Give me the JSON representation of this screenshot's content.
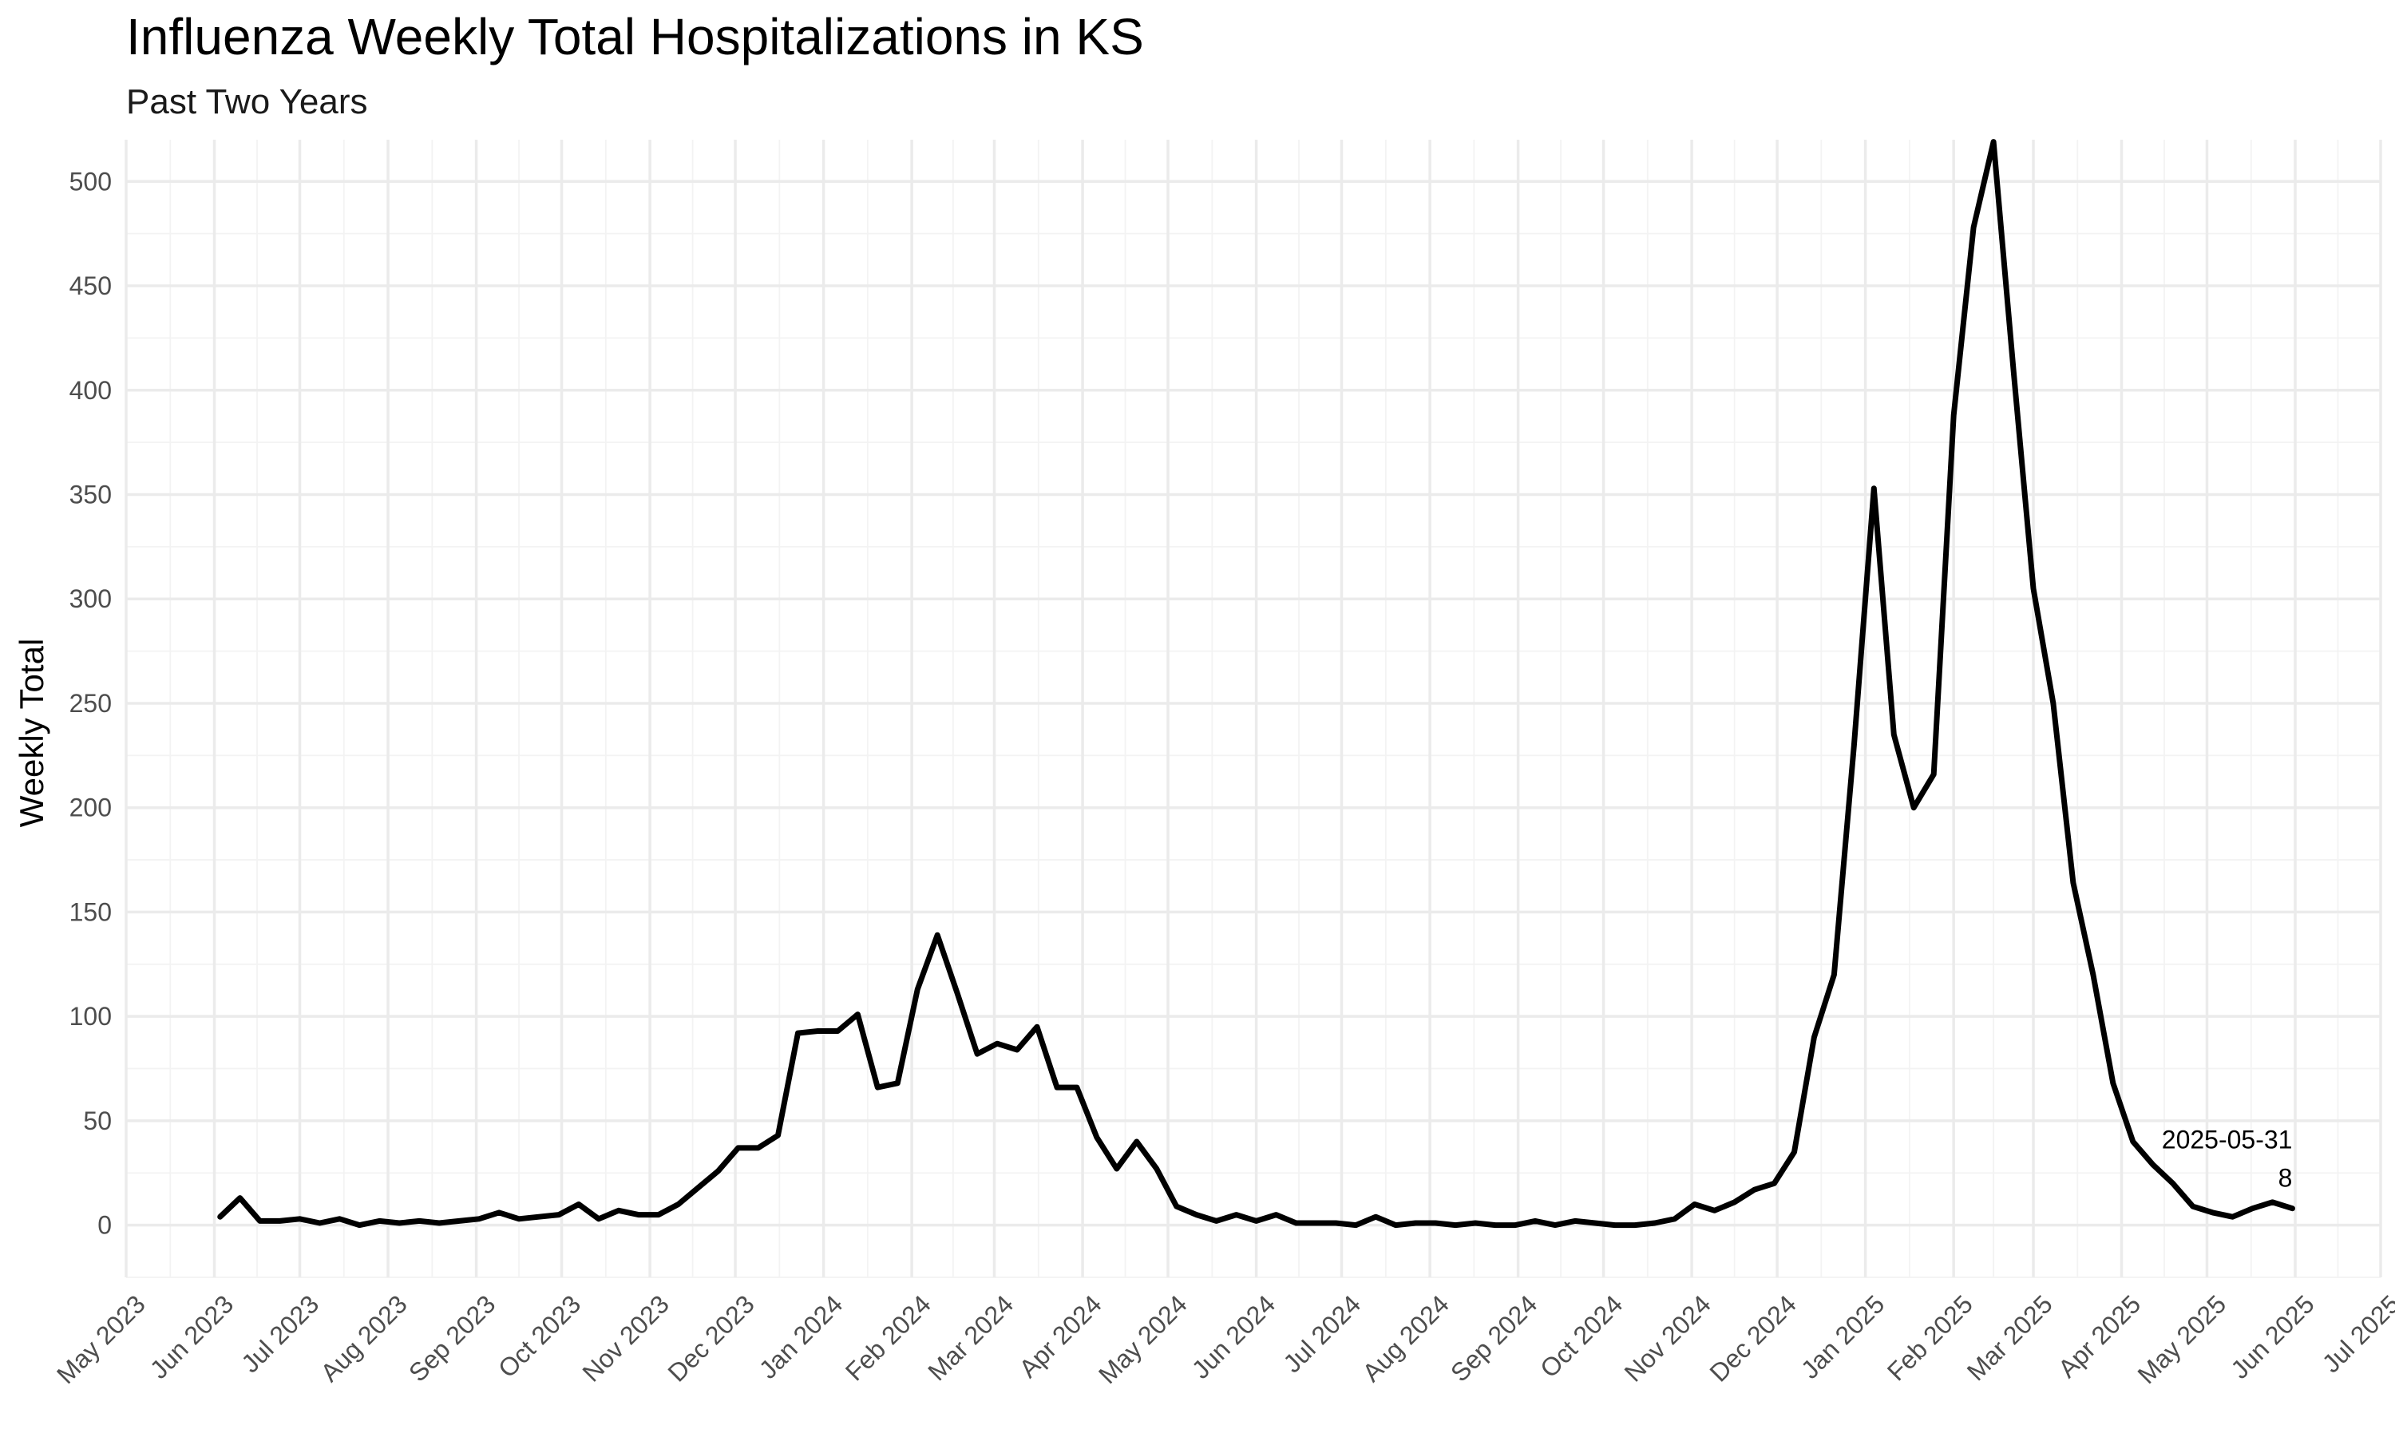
{
  "chart_data": {
    "type": "line",
    "title": "Influenza Weekly Total Hospitalizations in KS",
    "subtitle": "Past Two Years",
    "xlabel": "",
    "ylabel": "Weekly Total",
    "grid": true,
    "legend": "none",
    "xlim": [
      "2023-05-01",
      "2025-07-01"
    ],
    "ylim": [
      -25,
      520
    ],
    "y_ticks": [
      0,
      50,
      100,
      150,
      200,
      250,
      300,
      350,
      400,
      450,
      500
    ],
    "x_ticks": [
      {
        "date": "2023-05-01",
        "label": "May 2023"
      },
      {
        "date": "2023-06-01",
        "label": "Jun 2023"
      },
      {
        "date": "2023-07-01",
        "label": "Jul 2023"
      },
      {
        "date": "2023-08-01",
        "label": "Aug 2023"
      },
      {
        "date": "2023-09-01",
        "label": "Sep 2023"
      },
      {
        "date": "2023-10-01",
        "label": "Oct 2023"
      },
      {
        "date": "2023-11-01",
        "label": "Nov 2023"
      },
      {
        "date": "2023-12-01",
        "label": "Dec 2023"
      },
      {
        "date": "2024-01-01",
        "label": "Jan 2024"
      },
      {
        "date": "2024-02-01",
        "label": "Feb 2024"
      },
      {
        "date": "2024-03-01",
        "label": "Mar 2024"
      },
      {
        "date": "2024-04-01",
        "label": "Apr 2024"
      },
      {
        "date": "2024-05-01",
        "label": "May 2024"
      },
      {
        "date": "2024-06-01",
        "label": "Jun 2024"
      },
      {
        "date": "2024-07-01",
        "label": "Jul 2024"
      },
      {
        "date": "2024-08-01",
        "label": "Aug 2024"
      },
      {
        "date": "2024-09-01",
        "label": "Sep 2024"
      },
      {
        "date": "2024-10-01",
        "label": "Oct 2024"
      },
      {
        "date": "2024-11-01",
        "label": "Nov 2024"
      },
      {
        "date": "2024-12-01",
        "label": "Dec 2024"
      },
      {
        "date": "2025-01-01",
        "label": "Jan 2025"
      },
      {
        "date": "2025-02-01",
        "label": "Feb 2025"
      },
      {
        "date": "2025-03-01",
        "label": "Mar 2025"
      },
      {
        "date": "2025-04-01",
        "label": "Apr 2025"
      },
      {
        "date": "2025-05-01",
        "label": "May 2025"
      },
      {
        "date": "2025-06-01",
        "label": "Jun 2025"
      },
      {
        "date": "2025-07-01",
        "label": "Jul 2025"
      }
    ],
    "series": [
      {
        "color": "#000000",
        "points": [
          [
            "2023-06-03",
            4
          ],
          [
            "2023-06-10",
            13
          ],
          [
            "2023-06-17",
            2
          ],
          [
            "2023-06-24",
            2
          ],
          [
            "2023-07-01",
            3
          ],
          [
            "2023-07-08",
            1
          ],
          [
            "2023-07-15",
            3
          ],
          [
            "2023-07-22",
            0
          ],
          [
            "2023-07-29",
            2
          ],
          [
            "2023-08-05",
            1
          ],
          [
            "2023-08-12",
            2
          ],
          [
            "2023-08-19",
            1
          ],
          [
            "2023-08-26",
            2
          ],
          [
            "2023-09-02",
            3
          ],
          [
            "2023-09-09",
            6
          ],
          [
            "2023-09-16",
            3
          ],
          [
            "2023-09-23",
            4
          ],
          [
            "2023-09-30",
            5
          ],
          [
            "2023-10-07",
            10
          ],
          [
            "2023-10-14",
            3
          ],
          [
            "2023-10-21",
            7
          ],
          [
            "2023-10-28",
            5
          ],
          [
            "2023-11-04",
            5
          ],
          [
            "2023-11-11",
            10
          ],
          [
            "2023-11-18",
            18
          ],
          [
            "2023-11-25",
            26
          ],
          [
            "2023-12-02",
            37
          ],
          [
            "2023-12-09",
            37
          ],
          [
            "2023-12-16",
            43
          ],
          [
            "2023-12-23",
            92
          ],
          [
            "2023-12-30",
            93
          ],
          [
            "2024-01-06",
            93
          ],
          [
            "2024-01-13",
            101
          ],
          [
            "2024-01-20",
            66
          ],
          [
            "2024-01-27",
            68
          ],
          [
            "2024-02-03",
            113
          ],
          [
            "2024-02-10",
            139
          ],
          [
            "2024-02-17",
            111
          ],
          [
            "2024-02-24",
            82
          ],
          [
            "2024-03-02",
            87
          ],
          [
            "2024-03-09",
            84
          ],
          [
            "2024-03-16",
            95
          ],
          [
            "2024-03-23",
            66
          ],
          [
            "2024-03-30",
            66
          ],
          [
            "2024-04-06",
            42
          ],
          [
            "2024-04-13",
            27
          ],
          [
            "2024-04-20",
            40
          ],
          [
            "2024-04-27",
            27
          ],
          [
            "2024-05-04",
            9
          ],
          [
            "2024-05-11",
            5
          ],
          [
            "2024-05-18",
            2
          ],
          [
            "2024-05-25",
            5
          ],
          [
            "2024-06-01",
            2
          ],
          [
            "2024-06-08",
            5
          ],
          [
            "2024-06-15",
            1
          ],
          [
            "2024-06-22",
            1
          ],
          [
            "2024-06-29",
            1
          ],
          [
            "2024-07-06",
            0
          ],
          [
            "2024-07-13",
            4
          ],
          [
            "2024-07-20",
            0
          ],
          [
            "2024-07-27",
            1
          ],
          [
            "2024-08-03",
            1
          ],
          [
            "2024-08-10",
            0
          ],
          [
            "2024-08-17",
            1
          ],
          [
            "2024-08-24",
            0
          ],
          [
            "2024-08-31",
            0
          ],
          [
            "2024-09-07",
            2
          ],
          [
            "2024-09-14",
            0
          ],
          [
            "2024-09-21",
            2
          ],
          [
            "2024-09-28",
            1
          ],
          [
            "2024-10-05",
            0
          ],
          [
            "2024-10-12",
            0
          ],
          [
            "2024-10-19",
            1
          ],
          [
            "2024-10-26",
            3
          ],
          [
            "2024-11-02",
            10
          ],
          [
            "2024-11-09",
            7
          ],
          [
            "2024-11-16",
            11
          ],
          [
            "2024-11-23",
            17
          ],
          [
            "2024-11-30",
            20
          ],
          [
            "2024-12-07",
            35
          ],
          [
            "2024-12-14",
            90
          ],
          [
            "2024-12-21",
            120
          ],
          [
            "2024-12-28",
            230
          ],
          [
            "2025-01-04",
            353
          ],
          [
            "2025-01-11",
            235
          ],
          [
            "2025-01-18",
            200
          ],
          [
            "2025-01-25",
            216
          ],
          [
            "2025-02-01",
            388
          ],
          [
            "2025-02-08",
            478
          ],
          [
            "2025-02-15",
            519
          ],
          [
            "2025-02-22",
            410
          ],
          [
            "2025-03-01",
            305
          ],
          [
            "2025-03-08",
            250
          ],
          [
            "2025-03-15",
            164
          ],
          [
            "2025-03-22",
            120
          ],
          [
            "2025-03-29",
            68
          ],
          [
            "2025-04-05",
            40
          ],
          [
            "2025-04-12",
            29
          ],
          [
            "2025-04-19",
            20
          ],
          [
            "2025-04-26",
            9
          ],
          [
            "2025-05-03",
            6
          ],
          [
            "2025-05-10",
            4
          ],
          [
            "2025-05-17",
            8
          ],
          [
            "2025-05-24",
            11
          ],
          [
            "2025-05-31",
            8
          ]
        ]
      }
    ],
    "annotations": [
      {
        "date": "2025-05-31",
        "value": 8,
        "label_date": "2025-05-31",
        "label_value": "8"
      }
    ]
  }
}
